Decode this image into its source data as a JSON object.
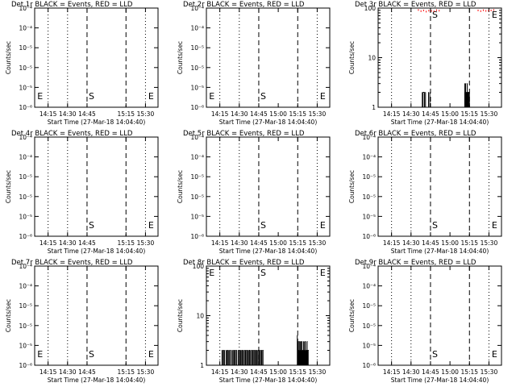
{
  "figure": {
    "background": "#ffffff",
    "ink": "#000000",
    "lld_color": "#ff0000"
  },
  "chart_data": [
    {
      "type": "line",
      "title": "Det 1r BLACK = Events, RED = LLD",
      "xlabel": "Start Time (27-Mar-18 14:04:40)",
      "ylabel": "Counts/sec",
      "scale": "log",
      "ylim": [
        1e-06,
        0.0001
      ],
      "yticks": [
        "10⁻⁴",
        "10⁻⁴",
        "10⁻⁵",
        "10⁻⁵",
        "10⁻⁵",
        "10⁻⁶"
      ],
      "xticks": [
        "14:15",
        "14:30",
        "14:45",
        "15:15",
        "15:30"
      ],
      "xtick_minutes": [
        10.33,
        25.33,
        40.33,
        70.33,
        85.33
      ],
      "markers": [
        "E",
        "S",
        "E"
      ],
      "series": [
        {
          "name": "BLACK = Events",
          "x": [],
          "y": []
        },
        {
          "name": "RED = LLD",
          "x": [],
          "y": []
        }
      ]
    },
    {
      "type": "line",
      "title": "Det 2r BLACK = Events, RED = LLD",
      "xlabel": "Start Time (27-Mar-18 14:04:40)",
      "ylabel": "Counts/sec",
      "scale": "log",
      "ylim": [
        1e-06,
        0.0001
      ],
      "yticks": [
        "10⁻⁴",
        "10⁻⁴",
        "10⁻⁵",
        "10⁻⁵",
        "10⁻⁵",
        "10⁻⁶"
      ],
      "xticks": [
        "14:15",
        "14:30",
        "14:45",
        "15:00",
        "15:15",
        "15:30"
      ],
      "xtick_minutes": [
        10.33,
        25.33,
        40.33,
        55.33,
        70.33,
        85.33
      ],
      "markers": [
        "E",
        "S",
        "E"
      ],
      "series": [
        {
          "name": "BLACK = Events",
          "x": [],
          "y": []
        },
        {
          "name": "RED = LLD",
          "x": [],
          "y": []
        }
      ]
    },
    {
      "type": "line",
      "title": "Det 3r BLACK = Events, RED = LLD",
      "xlabel": "Start Time (27-Mar-18 14:04:40)",
      "ylabel": "Counts/sec",
      "scale": "log",
      "ylim": [
        1,
        100
      ],
      "yticks": [
        "100",
        "10",
        "1"
      ],
      "xticks": [
        "14:15",
        "14:30",
        "14:45",
        "15:00",
        "15:15",
        "15:30"
      ],
      "xtick_minutes": [
        10.33,
        25.33,
        40.33,
        55.33,
        70.33,
        85.33
      ],
      "markers": [
        "S",
        "E"
      ],
      "series": [
        {
          "name": "BLACK = Events",
          "x": [
            34.0,
            34.3,
            34.6,
            35.4,
            35.7,
            36.2,
            36.5,
            38.8,
            39.1,
            39.8,
            66.7,
            67.0,
            67.4,
            67.8,
            68.2,
            68.6,
            69.0,
            69.4,
            69.8,
            70.3
          ],
          "y": [
            2,
            1,
            2,
            1,
            2,
            1,
            2,
            2,
            1,
            2,
            3,
            2,
            3,
            2,
            2,
            3,
            2,
            2,
            2,
            2
          ]
        },
        {
          "name": "RED = LLD",
          "x": [
            31.0,
            33.0,
            35.0,
            37.0,
            39.0,
            41.0,
            43.0,
            45.0,
            47.0,
            77.0,
            79.0,
            81.0,
            83.0,
            85.0,
            87.0,
            89.0
          ],
          "y": [
            95,
            90,
            93,
            88,
            92,
            91,
            89,
            94,
            92,
            93,
            90,
            94,
            91,
            92,
            93,
            95
          ]
        }
      ]
    },
    {
      "type": "line",
      "title": "Det 4r BLACK = Events, RED = LLD",
      "xlabel": "Start Time (27-Mar-18 14:04:40)",
      "ylabel": "Counts/sec",
      "scale": "log",
      "ylim": [
        1e-06,
        0.0001
      ],
      "yticks": [
        "10⁻⁴",
        "10⁻⁴",
        "10⁻⁵",
        "10⁻⁵",
        "10⁻⁵",
        "10⁻⁶"
      ],
      "xticks": [
        "14:15",
        "14:30",
        "14:45",
        "15:15",
        "15:30"
      ],
      "xtick_minutes": [
        10.33,
        25.33,
        40.33,
        70.33,
        85.33
      ],
      "markers": [
        "S",
        "E"
      ],
      "series": [
        {
          "name": "BLACK = Events",
          "x": [],
          "y": []
        },
        {
          "name": "RED = LLD",
          "x": [],
          "y": []
        }
      ]
    },
    {
      "type": "line",
      "title": "Det 5r BLACK = Events, RED = LLD",
      "xlabel": "Start Time (27-Mar-18 14:04:40)",
      "ylabel": "Counts/sec",
      "scale": "log",
      "ylim": [
        1e-06,
        0.0001
      ],
      "yticks": [
        "10⁻⁴",
        "10⁻⁴",
        "10⁻⁵",
        "10⁻⁵",
        "10⁻⁵",
        "10⁻⁶"
      ],
      "xticks": [
        "14:15",
        "14:30",
        "14:45",
        "15:00",
        "15:15",
        "15:30"
      ],
      "xtick_minutes": [
        10.33,
        25.33,
        40.33,
        55.33,
        70.33,
        85.33
      ],
      "markers": [
        "S",
        "E"
      ],
      "series": [
        {
          "name": "BLACK = Events",
          "x": [],
          "y": []
        },
        {
          "name": "RED = LLD",
          "x": [],
          "y": []
        }
      ]
    },
    {
      "type": "line",
      "title": "Det 6r BLACK = Events, RED = LLD",
      "xlabel": "Start Time (27-Mar-18 14:04:40)",
      "ylabel": "Counts/sec",
      "scale": "log",
      "ylim": [
        1e-06,
        0.0001
      ],
      "yticks": [
        "10⁻⁴",
        "10⁻⁴",
        "10⁻⁵",
        "10⁻⁵",
        "10⁻⁵",
        "10⁻⁶"
      ],
      "xticks": [
        "14:15",
        "14:30",
        "14:45",
        "15:00",
        "15:15",
        "15:30"
      ],
      "xtick_minutes": [
        10.33,
        25.33,
        40.33,
        55.33,
        70.33,
        85.33
      ],
      "markers": [
        "S",
        "E"
      ],
      "series": [
        {
          "name": "BLACK = Events",
          "x": [],
          "y": []
        },
        {
          "name": "RED = LLD",
          "x": [],
          "y": []
        }
      ]
    },
    {
      "type": "line",
      "title": "Det 7r BLACK = Events, RED = LLD",
      "xlabel": "Start Time (27-Mar-18 14:04:40)",
      "ylabel": "Counts/sec",
      "scale": "log",
      "ylim": [
        1e-06,
        0.0001
      ],
      "yticks": [
        "10⁻⁴",
        "10⁻⁴",
        "10⁻⁵",
        "10⁻⁵",
        "10⁻⁵",
        "10⁻⁶"
      ],
      "xticks": [
        "14:15",
        "14:30",
        "14:45",
        "15:15",
        "15:30"
      ],
      "xtick_minutes": [
        10.33,
        25.33,
        40.33,
        70.33,
        85.33
      ],
      "markers": [
        "E",
        "S",
        "E"
      ],
      "series": [
        {
          "name": "BLACK = Events",
          "x": [],
          "y": []
        },
        {
          "name": "RED = LLD",
          "x": [],
          "y": []
        }
      ]
    },
    {
      "type": "line",
      "title": "Det 8r BLACK = Events, RED = LLD",
      "xlabel": "Start Time (27-Mar-18 14:04:40)",
      "ylabel": "Counts/sec",
      "scale": "log",
      "ylim": [
        1,
        100
      ],
      "yticks": [
        "100",
        "10",
        "1"
      ],
      "xticks": [
        "14:15",
        "14:30",
        "14:45",
        "15:00",
        "15:15",
        "15:30"
      ],
      "xtick_minutes": [
        10.33,
        25.33,
        40.33,
        55.33,
        70.33,
        85.33
      ],
      "markers": [
        "E",
        "S",
        "E"
      ],
      "series": [
        {
          "name": "BLACK = Events",
          "x": [
            12.0,
            12.4,
            12.8,
            13.2,
            13.6,
            14.0,
            14.4,
            14.8,
            15.2,
            15.6,
            16.0,
            16.4,
            16.8,
            17.2,
            17.6,
            18.0,
            18.4,
            18.8,
            19.2,
            19.6,
            20.0,
            20.4,
            20.8,
            21.2,
            21.6,
            22.0,
            22.4,
            22.8,
            23.2,
            23.6,
            24.0,
            24.4,
            24.8,
            25.2,
            25.6,
            26.0,
            26.4,
            26.8,
            27.2,
            27.6,
            28.0,
            28.4,
            28.8,
            29.2,
            29.6,
            30.0,
            30.4,
            30.8,
            31.2,
            31.6,
            32.0,
            32.4,
            32.8,
            33.2,
            33.6,
            34.0,
            34.4,
            34.8,
            35.2,
            35.6,
            36.0,
            36.4,
            36.8,
            37.2,
            37.6,
            38.0,
            38.4,
            38.8,
            39.2,
            39.6,
            40.0,
            40.4,
            40.8,
            41.2,
            41.6,
            42.0,
            42.4,
            42.8,
            43.2,
            43.6,
            44.0,
            70.0,
            70.4,
            70.8,
            71.2,
            71.6,
            72.0,
            72.4,
            72.8,
            73.2,
            73.6,
            74.0,
            74.4,
            74.8,
            75.2,
            75.6,
            76.0,
            76.4,
            76.8,
            77.2,
            77.6,
            78.0,
            78.4,
            78.8,
            79.2
          ],
          "y": [
            2,
            1,
            2,
            2,
            1,
            2,
            1,
            1,
            2,
            1,
            2,
            2,
            1,
            2,
            1,
            2,
            2,
            1,
            1,
            2,
            1,
            2,
            1,
            2,
            2,
            1,
            2,
            1,
            2,
            1,
            1,
            2,
            1,
            2,
            2,
            1,
            2,
            1,
            2,
            2,
            1,
            2,
            1,
            2,
            1,
            2,
            2,
            1,
            2,
            1,
            2,
            1,
            2,
            2,
            1,
            2,
            1,
            2,
            1,
            2,
            2,
            1,
            2,
            1,
            2,
            2,
            1,
            2,
            1,
            2,
            1,
            2,
            2,
            1,
            2,
            1,
            2,
            2,
            1,
            2,
            1,
            4,
            3,
            3,
            2,
            3,
            2,
            3,
            3,
            2,
            3,
            2,
            2,
            3,
            2,
            3,
            2,
            3,
            2,
            2,
            3,
            2,
            2,
            1,
            1
          ]
        },
        {
          "name": "RED = LLD",
          "x": [],
          "y": []
        }
      ]
    },
    {
      "type": "line",
      "title": "Det 9r BLACK = Events, RED = LLD",
      "xlabel": "Start Time (27-Mar-18 14:04:40)",
      "ylabel": "Counts/sec",
      "scale": "log",
      "ylim": [
        1e-06,
        0.0001
      ],
      "yticks": [
        "10⁻⁴",
        "10⁻⁴",
        "10⁻⁵",
        "10⁻⁵",
        "10⁻⁵",
        "10⁻⁶"
      ],
      "xticks": [
        "14:15",
        "14:30",
        "14:45",
        "15:00",
        "15:15",
        "15:30"
      ],
      "xtick_minutes": [
        10.33,
        25.33,
        40.33,
        55.33,
        70.33,
        85.33
      ],
      "markers": [
        "S",
        "E"
      ],
      "series": [
        {
          "name": "BLACK = Events",
          "x": [],
          "y": []
        },
        {
          "name": "RED = LLD",
          "x": [],
          "y": []
        }
      ]
    }
  ]
}
